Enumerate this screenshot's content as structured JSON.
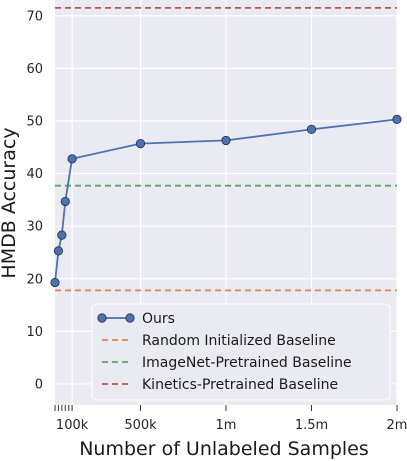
{
  "chart_data": {
    "type": "line",
    "xlabel": "Number of Unlabeled Samples",
    "ylabel": "HMDB Accuracy",
    "xlim": [
      0,
      2000000
    ],
    "ylim": [
      -4,
      73
    ],
    "grid": true,
    "legend_position": "lower right",
    "x_ticks": [
      {
        "value": 100000,
        "label": "100k"
      },
      {
        "value": 500000,
        "label": "500k"
      },
      {
        "value": 1000000,
        "label": "1m"
      },
      {
        "value": 1500000,
        "label": "1.5m"
      },
      {
        "value": 2000000,
        "label": "2m"
      }
    ],
    "x_minor_ticks": [
      0,
      20000,
      40000,
      60000,
      80000
    ],
    "y_ticks": [
      0,
      10,
      20,
      30,
      40,
      50,
      60,
      70
    ],
    "series": [
      {
        "name": "Ours",
        "kind": "line-marker",
        "color": "#4c72b0",
        "x": [
          0,
          20000,
          40000,
          60000,
          100000,
          500000,
          1000000,
          1500000,
          2000000
        ],
        "y": [
          19.3,
          25.3,
          28.3,
          34.7,
          42.8,
          45.7,
          46.3,
          48.4,
          50.3
        ]
      }
    ],
    "baselines": [
      {
        "name": "Random Initialized Baseline",
        "color": "#dd8452",
        "y": 17.8
      },
      {
        "name": "ImageNet-Pretrained Baseline",
        "color": "#55a868",
        "y": 37.7
      },
      {
        "name": "Kinetics-Pretrained Baseline",
        "color": "#c44e52",
        "y": 71.5
      }
    ]
  }
}
